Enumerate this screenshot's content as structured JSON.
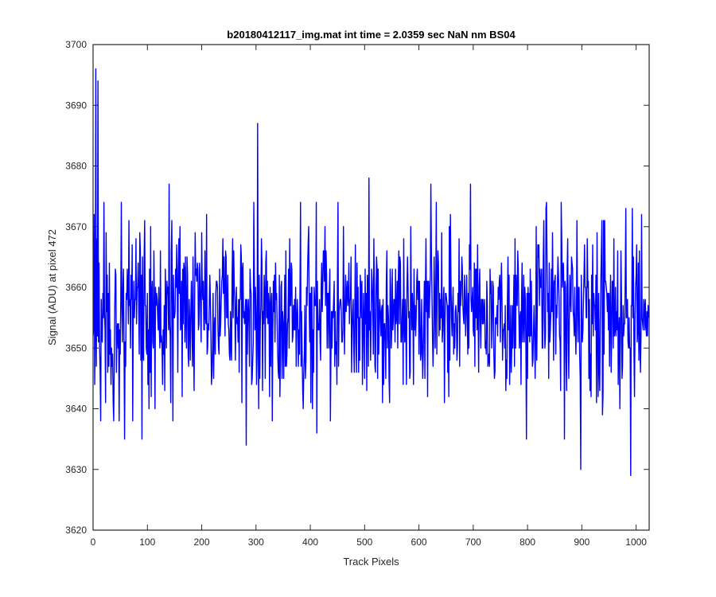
{
  "chart_data": {
    "type": "line",
    "title": "b20180412117_img.mat int time = 2.0359 sec  NaN nm BS04",
    "xlabel": "Track Pixels",
    "ylabel": "Signal (ADU) at pixel 472",
    "xlim": [
      0,
      1024
    ],
    "ylim": [
      3620,
      3700
    ],
    "xticks": [
      0,
      100,
      200,
      300,
      400,
      500,
      600,
      700,
      800,
      900,
      1000
    ],
    "yticks": [
      3620,
      3630,
      3640,
      3650,
      3660,
      3670,
      3680,
      3690,
      3700
    ],
    "grid": false,
    "box": true,
    "n_points": 1024,
    "series": [
      {
        "color": "#0000ff",
        "baseline_mean": 3656,
        "typical_range": [
          3641,
          3671
        ],
        "notable_points": [
          {
            "x": 0,
            "y": 3652
          },
          {
            "x": 3,
            "y": 3644
          },
          {
            "x": 5,
            "y": 3696
          },
          {
            "x": 8,
            "y": 3652
          },
          {
            "x": 9,
            "y": 3694
          },
          {
            "x": 12,
            "y": 3650
          },
          {
            "x": 14,
            "y": 3638
          },
          {
            "x": 38,
            "y": 3638
          },
          {
            "x": 52,
            "y": 3674
          },
          {
            "x": 58,
            "y": 3635
          },
          {
            "x": 90,
            "y": 3635
          },
          {
            "x": 140,
            "y": 3677
          },
          {
            "x": 282,
            "y": 3634
          },
          {
            "x": 303,
            "y": 3687
          },
          {
            "x": 330,
            "y": 3638
          },
          {
            "x": 412,
            "y": 3636
          },
          {
            "x": 508,
            "y": 3678
          },
          {
            "x": 622,
            "y": 3677
          },
          {
            "x": 695,
            "y": 3677
          },
          {
            "x": 798,
            "y": 3635
          },
          {
            "x": 868,
            "y": 3635
          },
          {
            "x": 898,
            "y": 3630
          },
          {
            "x": 990,
            "y": 3629
          },
          {
            "x": 1010,
            "y": 3672
          },
          {
            "x": 1023,
            "y": 3655
          }
        ]
      }
    ]
  }
}
